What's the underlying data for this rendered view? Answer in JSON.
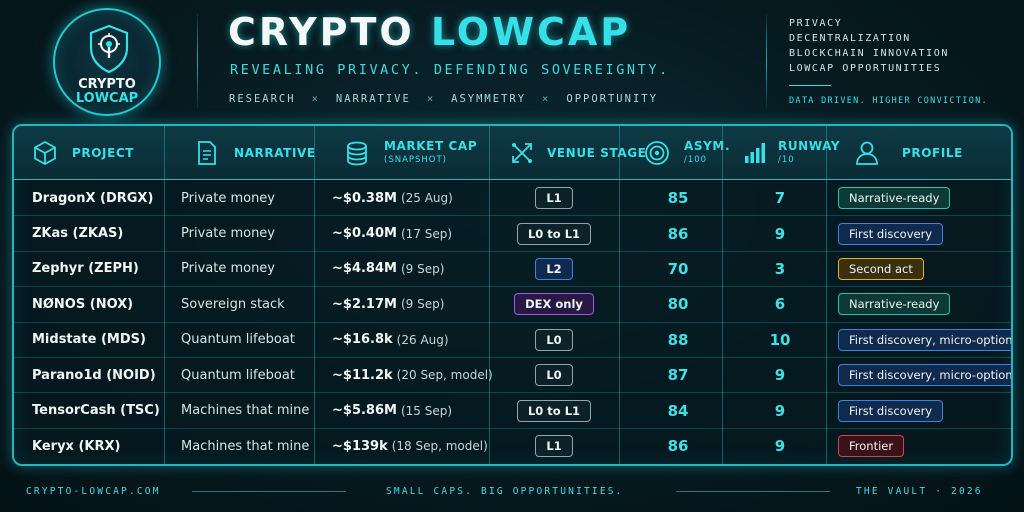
{
  "brand": {
    "logo_line1": "CRYPTO",
    "logo_line2": "LOWCAP",
    "logo_icon": "shield-keyhole-icon"
  },
  "header": {
    "title_part1": "CRYPTO",
    "title_part2": "LOWCAP",
    "tagline": "REVEALING PRIVACY. DEFENDING SOVEREIGNTY.",
    "keywords": [
      "RESEARCH",
      "NARRATIVE",
      "ASYMMETRY",
      "OPPORTUNITY"
    ],
    "keyword_separator": "×"
  },
  "side": {
    "items": [
      "PRIVACY",
      "DECENTRALIZATION",
      "BLOCKCHAIN INNOVATION",
      "LOWCAP OPPORTUNITIES"
    ],
    "note": "DATA DRIVEN. HIGHER CONVICTION."
  },
  "table": {
    "headers": {
      "project": "PROJECT",
      "narrative": "NARRATIVE",
      "market_cap": "MARKET CAP",
      "market_cap_sub": "(SNAPSHOT)",
      "venue": "VENUE STAGE",
      "asym": "ASYM.",
      "asym_sub": "/100",
      "runway": "RUNWAY",
      "runway_sub": "/10",
      "profile": "PROFILE"
    },
    "rows": [
      {
        "project": "DragonX (DRGX)",
        "narrative": "Private money",
        "mcap": "~$0.38M",
        "mcap_date": "(25 Aug)",
        "venue": "L1",
        "asym": "85",
        "runway": "7",
        "profile": "Narrative-ready"
      },
      {
        "project": "ZKas (ZKAS)",
        "narrative": "Private money",
        "mcap": "~$0.40M",
        "mcap_date": "(17 Sep)",
        "venue": "L0 to L1",
        "asym": "86",
        "runway": "9",
        "profile": "First discovery"
      },
      {
        "project": "Zephyr (ZEPH)",
        "narrative": "Private money",
        "mcap": "~$4.84M",
        "mcap_date": "(9 Sep)",
        "venue": "L2",
        "asym": "70",
        "runway": "3",
        "profile": "Second act"
      },
      {
        "project": "NØNOS (NOX)",
        "narrative": "Sovereign stack",
        "mcap": "~$2.17M",
        "mcap_date": "(9 Sep)",
        "venue": "DEX only",
        "asym": "80",
        "runway": "6",
        "profile": "Narrative-ready"
      },
      {
        "project": "Midstate (MDS)",
        "narrative": "Quantum lifeboat",
        "mcap": "~$16.8k",
        "mcap_date": "(26 Aug)",
        "venue": "L0",
        "asym": "88",
        "runway": "10",
        "profile": "First discovery, micro-option"
      },
      {
        "project": "Parano1d (NOID)",
        "narrative": "Quantum lifeboat",
        "mcap": "~$11.2k",
        "mcap_date": "(20 Sep, model)",
        "venue": "L0",
        "asym": "87",
        "runway": "9",
        "profile": "First discovery, micro-option"
      },
      {
        "project": "TensorCash (TSC)",
        "narrative": "Machines that mine",
        "mcap": "~$5.86M",
        "mcap_date": "(15 Sep)",
        "venue": "L0 to L1",
        "asym": "84",
        "runway": "9",
        "profile": "First discovery"
      },
      {
        "project": "Keryx (KRX)",
        "narrative": "Machines that mine",
        "mcap": "~$139k",
        "mcap_date": "(18 Sep, model)",
        "venue": "L1",
        "asym": "86",
        "runway": "9",
        "profile": "Frontier"
      }
    ]
  },
  "footer": {
    "left": "CRYPTO-LOWCAP.COM",
    "center": "SMALL CAPS. BIG OPPORTUNITIES.",
    "right": "THE VAULT · 2026"
  },
  "colors": {
    "accent": "#36e0e8",
    "background": "#061a20",
    "profile_teal": "#30c0a8",
    "profile_blue": "#3d82e0",
    "profile_yellow": "#e0b520",
    "profile_red": "#d04250",
    "venue_l2": "#3d82e0",
    "venue_dex": "#9c5ae0"
  }
}
